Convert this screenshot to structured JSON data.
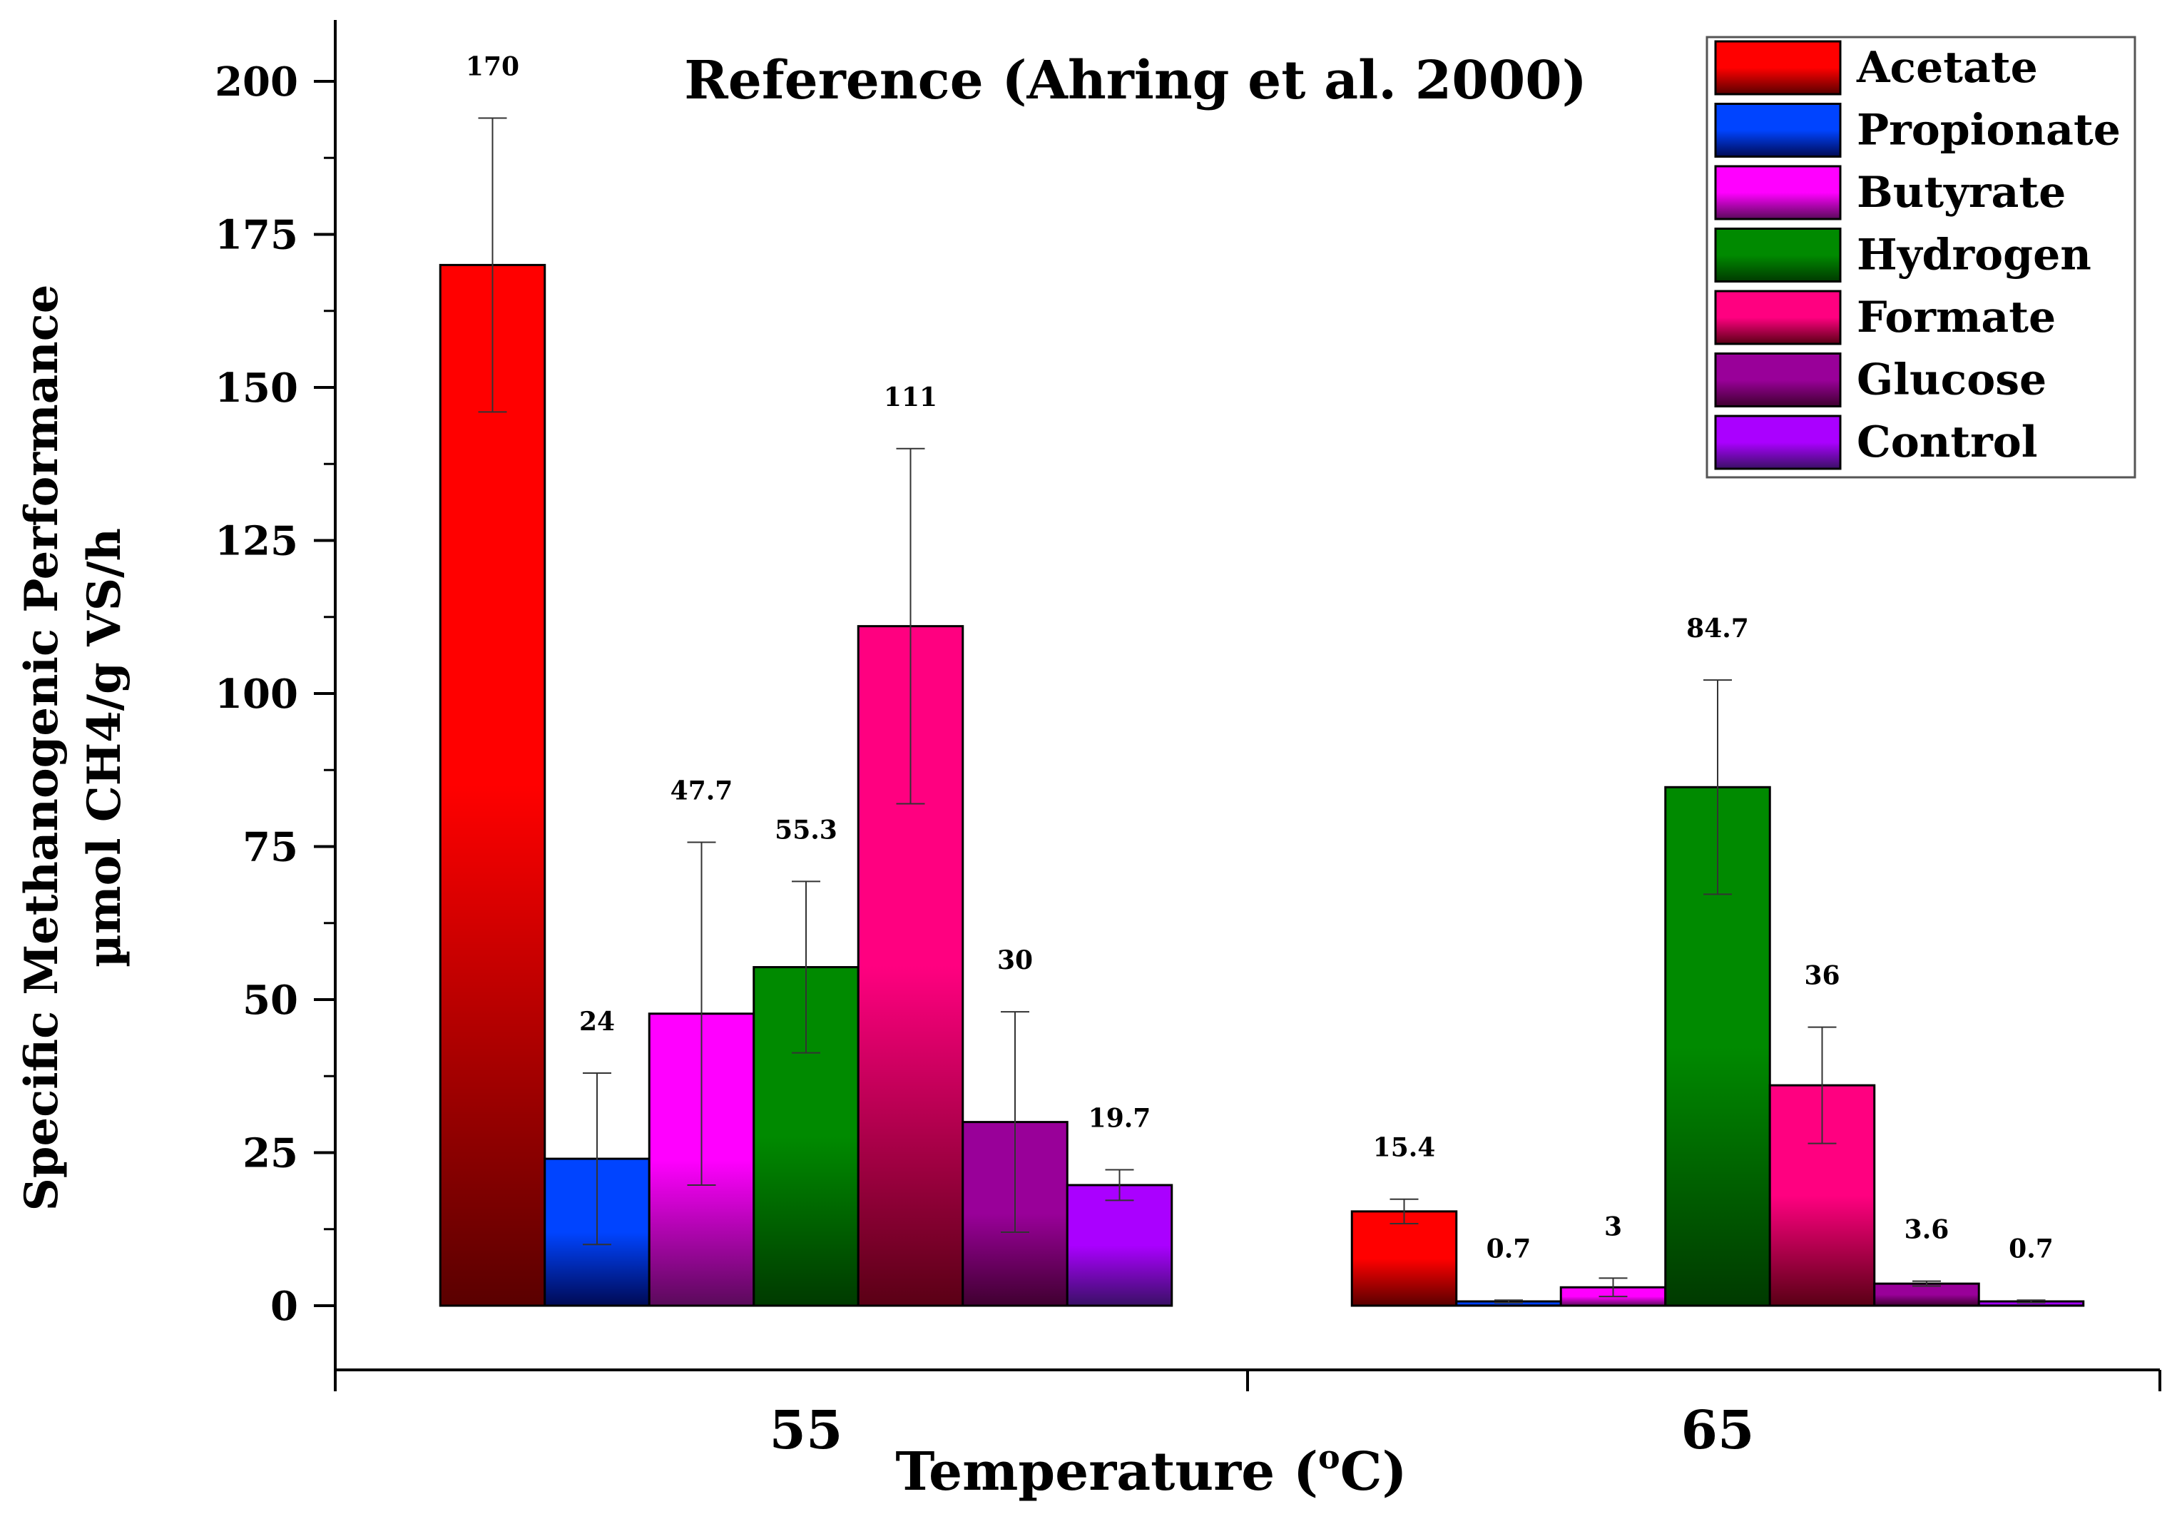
{
  "chart_data": {
    "type": "bar",
    "title": "Reference (Ahring et al. 2000)",
    "xlabel_main": "Temperature (",
    "xlabel_sup": "o",
    "xlabel_end": "C)",
    "ylabel_line1": "Specific Methanogenic Performance",
    "ylabel_line2": "µmol CH4/g VS/h",
    "categories": [
      "55",
      "65"
    ],
    "ylim": [
      -10,
      210
    ],
    "yticks": [
      "0",
      "25",
      "50",
      "75",
      "100",
      "125",
      "150",
      "175",
      "200"
    ],
    "legend_position": "top-right",
    "series": [
      {
        "name": "Acetate",
        "color_top": "#ff0000",
        "color_bottom": "#5a0000",
        "values": [
          170,
          15.4
        ],
        "errors": [
          24,
          2
        ],
        "labels": [
          "170",
          "15.4"
        ]
      },
      {
        "name": "Propionate",
        "color_top": "#0044ff",
        "color_bottom": "#000a55",
        "values": [
          24,
          0.7
        ],
        "errors": [
          14,
          0.2
        ],
        "labels": [
          "24",
          "0.7"
        ]
      },
      {
        "name": "Butyrate",
        "color_top": "#ff00ff",
        "color_bottom": "#5a0a5a",
        "values": [
          47.7,
          3
        ],
        "errors": [
          28,
          1.5
        ],
        "labels": [
          "47.7",
          "3"
        ]
      },
      {
        "name": "Hydrogen",
        "color_top": "#008a00",
        "color_bottom": "#003a00",
        "values": [
          55.3,
          84.7
        ],
        "errors": [
          14,
          17.5
        ],
        "labels": [
          "55.3",
          "84.7"
        ]
      },
      {
        "name": "Formate",
        "color_top": "#ff0080",
        "color_bottom": "#5a0015",
        "values": [
          111,
          36
        ],
        "errors": [
          29,
          9.5
        ],
        "labels": [
          "111",
          "36"
        ]
      },
      {
        "name": "Glucose",
        "color_top": "#990099",
        "color_bottom": "#400030",
        "values": [
          30,
          3.6
        ],
        "errors": [
          18,
          0.4
        ],
        "labels": [
          "30",
          "3.6"
        ]
      },
      {
        "name": "Control",
        "color_top": "#aa00ff",
        "color_bottom": "#3a1066",
        "values": [
          19.7,
          0.7
        ],
        "errors": [
          2.5,
          0.2
        ],
        "labels": [
          "19.7",
          "0.7"
        ]
      }
    ]
  }
}
